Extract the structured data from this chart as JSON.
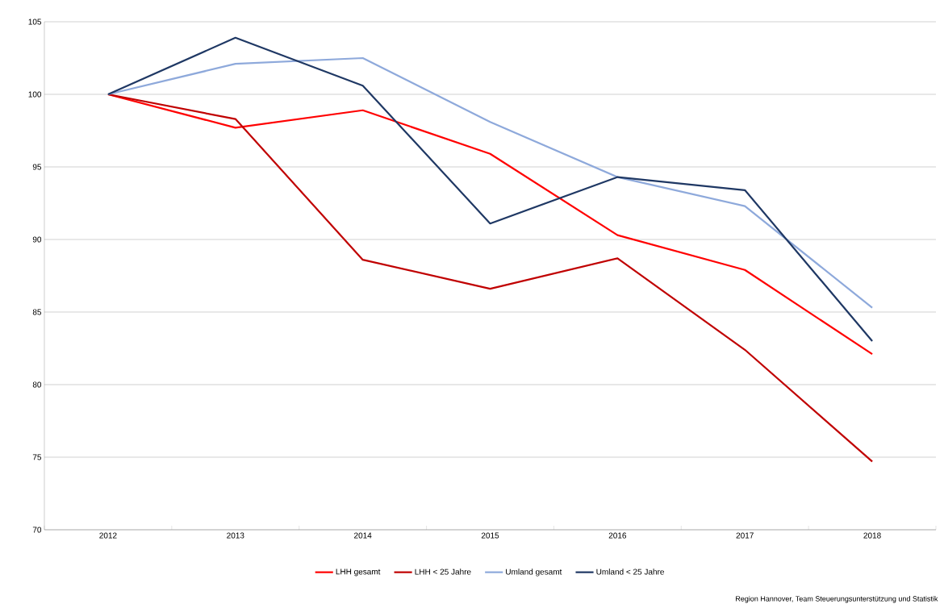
{
  "chart_data": {
    "type": "line",
    "categories": [
      "2012",
      "2013",
      "2014",
      "2015",
      "2016",
      "2017",
      "2018"
    ],
    "series": [
      {
        "name": "LHH gesamt",
        "color": "#ff0000",
        "values": [
          100,
          97.7,
          98.9,
          95.9,
          90.3,
          87.9,
          82.1
        ]
      },
      {
        "name": "LHH < 25 Jahre",
        "color": "#c00000",
        "values": [
          100,
          98.3,
          88.6,
          86.6,
          88.7,
          82.4,
          74.7
        ]
      },
      {
        "name": "Umland gesamt",
        "color": "#8ea9db",
        "values": [
          100,
          102.1,
          102.5,
          98.1,
          94.3,
          92.3,
          85.3
        ]
      },
      {
        "name": "Umland < 25 Jahre",
        "color": "#1f3864",
        "values": [
          100,
          103.9,
          100.6,
          91.1,
          94.3,
          93.4,
          83.0
        ]
      }
    ],
    "ylim": [
      70,
      105
    ],
    "yticks": [
      70,
      75,
      80,
      85,
      90,
      95,
      100,
      105
    ],
    "grid": "y",
    "legend": "bottom",
    "marker": "none",
    "line_style": "solid",
    "annotations": [
      "Region Hannover, Team Steuerungsunterstützung und Statistik"
    ]
  }
}
